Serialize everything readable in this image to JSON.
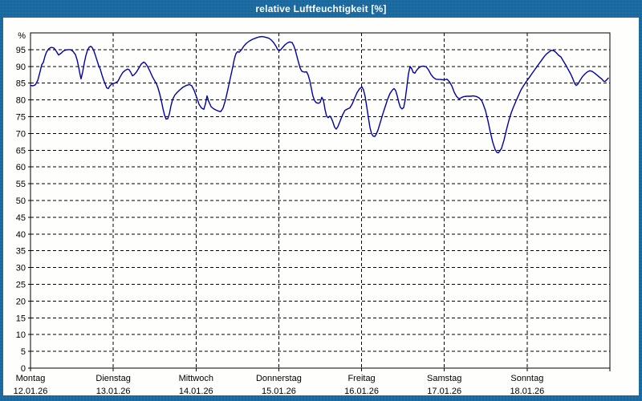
{
  "window": {
    "title": "relative Luftfeuchtigkeit [%]"
  },
  "colors": {
    "frame_blue": "#1d6da4",
    "plot_background": "#fefefc",
    "series_line": "#0000aa",
    "grid_lines": "#000000",
    "label_text": "#000000",
    "title_text": "#ffffff"
  },
  "chart_data": {
    "type": "line",
    "title": "relative Luftfeuchtigkeit [%]",
    "xlabel": "",
    "ylabel": "%",
    "ylim": [
      0,
      100
    ],
    "yticks": [
      0,
      5,
      10,
      15,
      20,
      25,
      30,
      35,
      40,
      45,
      50,
      55,
      60,
      65,
      70,
      75,
      80,
      85,
      90,
      95
    ],
    "xlim_days": [
      0,
      7
    ],
    "grid": "dashed horizontal and vertical, black on white",
    "legend": "none",
    "x_days": [
      {
        "name": "Montag",
        "date": "12.01.26"
      },
      {
        "name": "Dienstag",
        "date": "13.01.26"
      },
      {
        "name": "Mittwoch",
        "date": "14.01.26"
      },
      {
        "name": "Donnerstag",
        "date": "15.01.26"
      },
      {
        "name": "Freitag",
        "date": "16.01.26"
      },
      {
        "name": "Samstag",
        "date": "17.01.26"
      },
      {
        "name": "Sonntag",
        "date": "18.01.26"
      }
    ],
    "series": [
      {
        "name": "relative Luftfeuchtigkeit",
        "unit": "%",
        "color": "#0000aa",
        "points": [
          [
            0.0,
            84.3
          ],
          [
            0.029,
            84.2
          ],
          [
            0.058,
            84.5
          ],
          [
            0.087,
            85.8
          ],
          [
            0.116,
            88.5
          ],
          [
            0.136,
            90.5
          ],
          [
            0.155,
            91.2
          ],
          [
            0.175,
            93.0
          ],
          [
            0.194,
            94.3
          ],
          [
            0.223,
            95.3
          ],
          [
            0.252,
            95.7
          ],
          [
            0.281,
            95.5
          ],
          [
            0.31,
            94.6
          ],
          [
            0.339,
            93.4
          ],
          [
            0.368,
            93.9
          ],
          [
            0.397,
            94.6
          ],
          [
            0.427,
            94.9
          ],
          [
            0.456,
            95.0
          ],
          [
            0.485,
            95.0
          ],
          [
            0.514,
            94.5
          ],
          [
            0.543,
            93.5
          ],
          [
            0.562,
            92.0
          ],
          [
            0.582,
            89.8
          ],
          [
            0.601,
            87.3
          ],
          [
            0.611,
            86.3
          ],
          [
            0.63,
            88.3
          ],
          [
            0.65,
            91.0
          ],
          [
            0.669,
            93.2
          ],
          [
            0.688,
            94.8
          ],
          [
            0.708,
            95.7
          ],
          [
            0.727,
            96.0
          ],
          [
            0.747,
            95.6
          ],
          [
            0.766,
            94.6
          ],
          [
            0.785,
            93.2
          ],
          [
            0.805,
            91.7
          ],
          [
            0.824,
            90.2
          ],
          [
            0.843,
            89.2
          ],
          [
            0.863,
            87.5
          ],
          [
            0.882,
            86.0
          ],
          [
            0.902,
            84.8
          ],
          [
            0.921,
            83.6
          ],
          [
            0.94,
            83.4
          ],
          [
            0.96,
            84.2
          ],
          [
            0.979,
            84.7
          ],
          [
            0.999,
            84.9
          ],
          [
            1.028,
            85.1
          ],
          [
            1.057,
            85.6
          ],
          [
            1.086,
            87.0
          ],
          [
            1.115,
            88.2
          ],
          [
            1.144,
            88.8
          ],
          [
            1.173,
            89.2
          ],
          [
            1.192,
            89.0
          ],
          [
            1.212,
            88.2
          ],
          [
            1.231,
            87.2
          ],
          [
            1.251,
            87.5
          ],
          [
            1.28,
            88.3
          ],
          [
            1.309,
            89.5
          ],
          [
            1.338,
            90.7
          ],
          [
            1.367,
            91.3
          ],
          [
            1.386,
            91.0
          ],
          [
            1.415,
            90.0
          ],
          [
            1.445,
            88.5
          ],
          [
            1.474,
            86.9
          ],
          [
            1.503,
            85.6
          ],
          [
            1.522,
            84.8
          ],
          [
            1.542,
            83.5
          ],
          [
            1.561,
            81.8
          ],
          [
            1.58,
            79.8
          ],
          [
            1.6,
            77.5
          ],
          [
            1.619,
            75.5
          ],
          [
            1.638,
            74.3
          ],
          [
            1.658,
            74.4
          ],
          [
            1.677,
            75.8
          ],
          [
            1.697,
            78.2
          ],
          [
            1.716,
            80.1
          ],
          [
            1.745,
            81.5
          ],
          [
            1.774,
            82.3
          ],
          [
            1.803,
            83.0
          ],
          [
            1.842,
            83.8
          ],
          [
            1.881,
            84.3
          ],
          [
            1.92,
            84.6
          ],
          [
            1.949,
            84.2
          ],
          [
            1.978,
            82.8
          ],
          [
            2.007,
            80.8
          ],
          [
            2.036,
            78.7
          ],
          [
            2.065,
            77.6
          ],
          [
            2.094,
            77.2
          ],
          [
            2.114,
            78.8
          ],
          [
            2.133,
            81.2
          ],
          [
            2.152,
            79.6
          ],
          [
            2.181,
            78.0
          ],
          [
            2.211,
            77.4
          ],
          [
            2.24,
            77.0
          ],
          [
            2.269,
            76.7
          ],
          [
            2.298,
            76.5
          ],
          [
            2.327,
            77.6
          ],
          [
            2.356,
            80.0
          ],
          [
            2.385,
            83.2
          ],
          [
            2.414,
            86.5
          ],
          [
            2.443,
            89.8
          ],
          [
            2.463,
            92.2
          ],
          [
            2.482,
            93.8
          ],
          [
            2.501,
            94.4
          ],
          [
            2.521,
            94.2
          ],
          [
            2.55,
            95.0
          ],
          [
            2.579,
            96.1
          ],
          [
            2.608,
            96.9
          ],
          [
            2.647,
            97.6
          ],
          [
            2.686,
            98.1
          ],
          [
            2.724,
            98.5
          ],
          [
            2.763,
            98.8
          ],
          [
            2.802,
            98.9
          ],
          [
            2.841,
            98.7
          ],
          [
            2.88,
            98.4
          ],
          [
            2.909,
            97.9
          ],
          [
            2.938,
            97.1
          ],
          [
            2.967,
            96.0
          ],
          [
            2.986,
            95.0
          ],
          [
            3.006,
            94.7
          ],
          [
            3.025,
            95.0
          ],
          [
            3.044,
            95.6
          ],
          [
            3.073,
            96.4
          ],
          [
            3.103,
            97.0
          ],
          [
            3.132,
            97.3
          ],
          [
            3.161,
            97.1
          ],
          [
            3.18,
            96.2
          ],
          [
            3.199,
            94.8
          ],
          [
            3.219,
            93.0
          ],
          [
            3.238,
            91.2
          ],
          [
            3.258,
            89.5
          ],
          [
            3.277,
            88.6
          ],
          [
            3.306,
            88.3
          ],
          [
            3.335,
            88.4
          ],
          [
            3.354,
            87.5
          ],
          [
            3.374,
            85.8
          ],
          [
            3.393,
            83.4
          ],
          [
            3.412,
            81.2
          ],
          [
            3.432,
            79.8
          ],
          [
            3.451,
            79.2
          ],
          [
            3.48,
            79.0
          ],
          [
            3.5,
            79.3
          ],
          [
            3.519,
            80.8
          ],
          [
            3.539,
            79.9
          ],
          [
            3.558,
            77.2
          ],
          [
            3.577,
            75.2
          ],
          [
            3.597,
            74.7
          ],
          [
            3.616,
            75.2
          ],
          [
            3.635,
            74.6
          ],
          [
            3.655,
            73.3
          ],
          [
            3.674,
            71.9
          ],
          [
            3.693,
            71.3
          ],
          [
            3.713,
            72.0
          ],
          [
            3.742,
            73.8
          ],
          [
            3.771,
            75.6
          ],
          [
            3.8,
            76.9
          ],
          [
            3.829,
            77.3
          ],
          [
            3.858,
            77.6
          ],
          [
            3.887,
            78.8
          ],
          [
            3.917,
            80.6
          ],
          [
            3.946,
            82.2
          ],
          [
            3.975,
            83.3
          ],
          [
            4.004,
            83.9
          ],
          [
            4.024,
            83.0
          ],
          [
            4.043,
            81.0
          ],
          [
            4.062,
            78.0
          ],
          [
            4.082,
            74.8
          ],
          [
            4.101,
            71.8
          ],
          [
            4.12,
            70.0
          ],
          [
            4.14,
            69.2
          ],
          [
            4.159,
            69.1
          ],
          [
            4.178,
            69.8
          ],
          [
            4.198,
            71.0
          ],
          [
            4.227,
            73.4
          ],
          [
            4.256,
            75.8
          ],
          [
            4.285,
            78.0
          ],
          [
            4.314,
            80.2
          ],
          [
            4.343,
            81.9
          ],
          [
            4.373,
            83.0
          ],
          [
            4.392,
            83.4
          ],
          [
            4.411,
            82.8
          ],
          [
            4.431,
            81.2
          ],
          [
            4.45,
            79.2
          ],
          [
            4.469,
            77.8
          ],
          [
            4.489,
            77.3
          ],
          [
            4.508,
            77.7
          ],
          [
            4.527,
            80.0
          ],
          [
            4.547,
            84.0
          ],
          [
            4.566,
            87.8
          ],
          [
            4.586,
            90.0
          ],
          [
            4.605,
            89.3
          ],
          [
            4.624,
            88.2
          ],
          [
            4.644,
            88.0
          ],
          [
            4.663,
            88.8
          ],
          [
            4.692,
            89.6
          ],
          [
            4.721,
            90.0
          ],
          [
            4.75,
            90.1
          ],
          [
            4.779,
            89.9
          ],
          [
            4.808,
            89.0
          ],
          [
            4.838,
            87.6
          ],
          [
            4.867,
            86.7
          ],
          [
            4.896,
            86.2
          ],
          [
            4.925,
            86.1
          ],
          [
            4.954,
            86.1
          ],
          [
            4.983,
            86.0
          ],
          [
            5.003,
            86.0
          ],
          [
            5.032,
            86.2
          ],
          [
            5.061,
            85.4
          ],
          [
            5.09,
            84.2
          ],
          [
            5.119,
            82.3
          ],
          [
            5.148,
            81.0
          ],
          [
            5.177,
            80.3
          ],
          [
            5.206,
            80.7
          ],
          [
            5.235,
            81.0
          ],
          [
            5.274,
            81.1
          ],
          [
            5.313,
            81.1
          ],
          [
            5.352,
            81.2
          ],
          [
            5.39,
            81.0
          ],
          [
            5.42,
            80.6
          ],
          [
            5.449,
            79.9
          ],
          [
            5.468,
            78.8
          ],
          [
            5.497,
            76.8
          ],
          [
            5.526,
            73.8
          ],
          [
            5.555,
            70.4
          ],
          [
            5.585,
            67.3
          ],
          [
            5.614,
            65.2
          ],
          [
            5.633,
            64.4
          ],
          [
            5.652,
            64.2
          ],
          [
            5.672,
            64.8
          ],
          [
            5.691,
            65.6
          ],
          [
            5.72,
            68.0
          ],
          [
            5.749,
            71.0
          ],
          [
            5.778,
            73.8
          ],
          [
            5.808,
            76.2
          ],
          [
            5.837,
            78.0
          ],
          [
            5.866,
            79.7
          ],
          [
            5.895,
            81.3
          ],
          [
            5.924,
            82.9
          ],
          [
            5.953,
            84.1
          ],
          [
            5.982,
            85.2
          ],
          [
            6.002,
            85.9
          ],
          [
            6.031,
            86.9
          ],
          [
            6.06,
            87.9
          ],
          [
            6.089,
            88.9
          ],
          [
            6.118,
            89.9
          ],
          [
            6.147,
            90.9
          ],
          [
            6.176,
            91.9
          ],
          [
            6.205,
            92.9
          ],
          [
            6.234,
            93.7
          ],
          [
            6.264,
            94.3
          ],
          [
            6.293,
            94.8
          ],
          [
            6.322,
            94.7
          ],
          [
            6.351,
            94.1
          ],
          [
            6.38,
            93.3
          ],
          [
            6.409,
            92.8
          ],
          [
            6.438,
            91.6
          ],
          [
            6.467,
            90.4
          ],
          [
            6.496,
            89.1
          ],
          [
            6.525,
            87.8
          ],
          [
            6.554,
            86.2
          ],
          [
            6.574,
            84.9
          ],
          [
            6.593,
            84.3
          ],
          [
            6.612,
            84.7
          ],
          [
            6.641,
            85.9
          ],
          [
            6.67,
            87.0
          ],
          [
            6.7,
            87.8
          ],
          [
            6.729,
            88.4
          ],
          [
            6.758,
            88.7
          ],
          [
            6.787,
            88.5
          ],
          [
            6.816,
            88.0
          ],
          [
            6.845,
            87.4
          ],
          [
            6.874,
            86.8
          ],
          [
            6.903,
            86.2
          ],
          [
            6.923,
            85.6
          ],
          [
            6.942,
            85.5
          ],
          [
            6.961,
            86.0
          ],
          [
            6.981,
            86.5
          ]
        ]
      }
    ]
  }
}
